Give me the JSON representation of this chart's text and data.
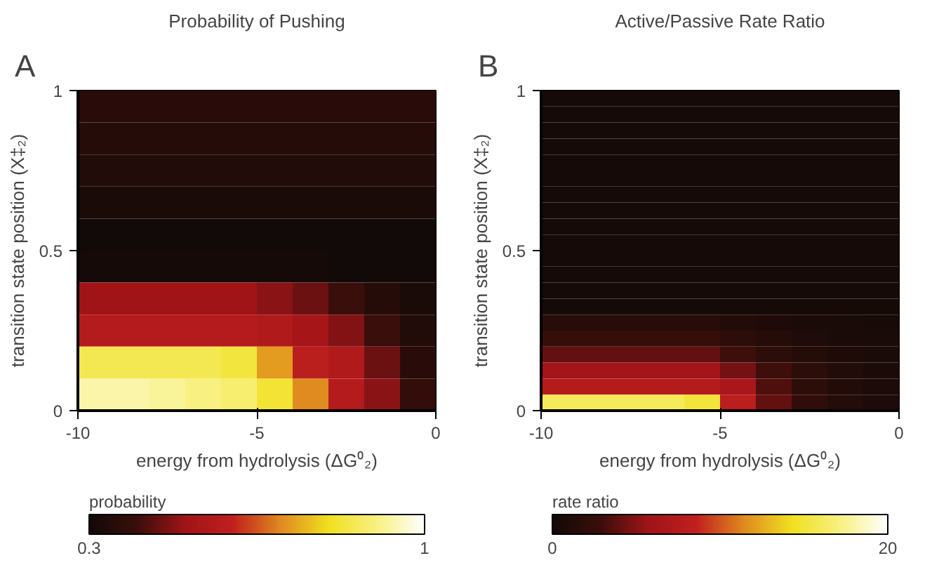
{
  "chart_data": [
    {
      "type": "heatmap",
      "title": "Probability of Pushing",
      "xlabel": "energy from hydrolysis (ΔG⁰₂)",
      "ylabel": "transition state position (X‡₂)",
      "clabel": "probability",
      "annotations": [
        "A"
      ],
      "x": [
        -9.5,
        -8.5,
        -7.5,
        -6.5,
        -5.5,
        -4.5,
        -3.5,
        -2.5,
        -1.5,
        -0.5
      ],
      "y": [
        0.95,
        0.85,
        0.75,
        0.65,
        0.55,
        0.45,
        0.35,
        0.25,
        0.15,
        0.05
      ],
      "cells": [
        [
          0.36,
          0.36,
          0.36,
          0.36,
          0.36,
          0.36,
          0.36,
          0.36,
          0.36,
          0.36
        ],
        [
          0.35,
          0.35,
          0.35,
          0.35,
          0.35,
          0.35,
          0.35,
          0.35,
          0.35,
          0.35
        ],
        [
          0.34,
          0.34,
          0.34,
          0.34,
          0.34,
          0.34,
          0.34,
          0.34,
          0.34,
          0.34
        ],
        [
          0.32,
          0.32,
          0.32,
          0.32,
          0.32,
          0.32,
          0.32,
          0.32,
          0.32,
          0.32
        ],
        [
          0.3,
          0.3,
          0.3,
          0.3,
          0.3,
          0.3,
          0.3,
          0.3,
          0.3,
          0.3
        ],
        [
          0.31,
          0.31,
          0.31,
          0.31,
          0.31,
          0.31,
          0.31,
          0.3,
          0.3,
          0.3
        ],
        [
          0.5,
          0.5,
          0.5,
          0.5,
          0.5,
          0.48,
          0.45,
          0.4,
          0.35,
          0.32
        ],
        [
          0.56,
          0.56,
          0.56,
          0.56,
          0.56,
          0.55,
          0.52,
          0.47,
          0.4,
          0.34
        ],
        [
          0.85,
          0.85,
          0.85,
          0.85,
          0.83,
          0.72,
          0.58,
          0.55,
          0.45,
          0.36
        ],
        [
          0.93,
          0.93,
          0.92,
          0.9,
          0.88,
          0.82,
          0.7,
          0.56,
          0.48,
          0.38
        ]
      ],
      "xlim": [
        -10,
        0
      ],
      "xticks": [
        -10,
        -5,
        0
      ],
      "ylim": [
        0,
        1
      ],
      "yticks": [
        0,
        0.5,
        1
      ],
      "clim": [
        0.3,
        1
      ],
      "cticks": [
        0.3,
        1
      ],
      "colors": [
        "#120a08",
        "#3a0e0a",
        "#a01418",
        "#c0201e",
        "#e08a20",
        "#f0e020",
        "#f8f080",
        "#ffffff"
      ]
    },
    {
      "type": "heatmap",
      "title": "Active/Passive Rate Ratio",
      "xlabel": "energy from hydrolysis (ΔG⁰₂)",
      "ylabel": "transition state position (X‡₂)",
      "clabel": "rate ratio",
      "annotations": [
        "B"
      ],
      "x": [
        -9.5,
        -8.5,
        -7.5,
        -6.5,
        -5.5,
        -4.5,
        -3.5,
        -2.5,
        -1.5,
        -0.5
      ],
      "y": [
        0.975,
        0.925,
        0.875,
        0.825,
        0.775,
        0.725,
        0.675,
        0.625,
        0.575,
        0.525,
        0.475,
        0.425,
        0.375,
        0.325,
        0.275,
        0.225,
        0.175,
        0.125,
        0.075,
        0.025
      ],
      "cells": [
        [
          0.3,
          0.3,
          0.3,
          0.3,
          0.3,
          0.3,
          0.3,
          0.3,
          0.3,
          0.3
        ],
        [
          0.3,
          0.3,
          0.3,
          0.3,
          0.3,
          0.3,
          0.3,
          0.3,
          0.3,
          0.3
        ],
        [
          0.3,
          0.3,
          0.3,
          0.3,
          0.3,
          0.3,
          0.3,
          0.3,
          0.3,
          0.3
        ],
        [
          0.3,
          0.3,
          0.3,
          0.3,
          0.3,
          0.3,
          0.3,
          0.3,
          0.3,
          0.3
        ],
        [
          0.3,
          0.3,
          0.3,
          0.3,
          0.3,
          0.3,
          0.3,
          0.3,
          0.3,
          0.3
        ],
        [
          0.3,
          0.3,
          0.3,
          0.3,
          0.3,
          0.3,
          0.3,
          0.3,
          0.3,
          0.3
        ],
        [
          0.3,
          0.3,
          0.3,
          0.3,
          0.3,
          0.3,
          0.3,
          0.3,
          0.3,
          0.3
        ],
        [
          0.3,
          0.3,
          0.3,
          0.3,
          0.3,
          0.3,
          0.3,
          0.3,
          0.3,
          0.3
        ],
        [
          0.3,
          0.3,
          0.3,
          0.3,
          0.3,
          0.3,
          0.3,
          0.3,
          0.3,
          0.3
        ],
        [
          0.3,
          0.3,
          0.3,
          0.3,
          0.3,
          0.3,
          0.3,
          0.3,
          0.3,
          0.3
        ],
        [
          0.3,
          0.3,
          0.3,
          0.3,
          0.3,
          0.3,
          0.3,
          0.3,
          0.3,
          0.3
        ],
        [
          0.3,
          0.3,
          0.3,
          0.3,
          0.3,
          0.3,
          0.3,
          0.3,
          0.3,
          0.3
        ],
        [
          0.3,
          0.3,
          0.3,
          0.3,
          0.3,
          0.3,
          0.3,
          0.3,
          0.3,
          0.3
        ],
        [
          0.3,
          0.3,
          0.3,
          0.3,
          0.3,
          0.3,
          0.3,
          0.3,
          0.3,
          0.3
        ],
        [
          1.5,
          1.5,
          1.5,
          1.5,
          1.5,
          1.2,
          0.9,
          0.7,
          0.5,
          0.4
        ],
        [
          2.5,
          2.5,
          2.5,
          2.5,
          2.5,
          2,
          1.4,
          1,
          0.7,
          0.5
        ],
        [
          4,
          4,
          4,
          4,
          4,
          3,
          2,
          1.3,
          0.9,
          0.6
        ],
        [
          6,
          6,
          6,
          6,
          6,
          4.5,
          3,
          1.8,
          1.1,
          0.7
        ],
        [
          7.5,
          7.5,
          7.5,
          7.5,
          7.5,
          6.5,
          3.5,
          2,
          1.2,
          0.8
        ],
        [
          16,
          16,
          16,
          16,
          15,
          8,
          4,
          2.2,
          1.3,
          0.9
        ]
      ],
      "xlim": [
        -10,
        0
      ],
      "xticks": [
        -10,
        -5,
        0
      ],
      "ylim": [
        0,
        1
      ],
      "yticks": [
        0,
        0.5,
        1
      ],
      "clim": [
        0,
        20
      ],
      "cticks": [
        0,
        20
      ],
      "colors": [
        "#120a08",
        "#3a0e0a",
        "#a01418",
        "#c0201e",
        "#e08a20",
        "#f0e020",
        "#f8f080",
        "#ffffff"
      ]
    }
  ]
}
